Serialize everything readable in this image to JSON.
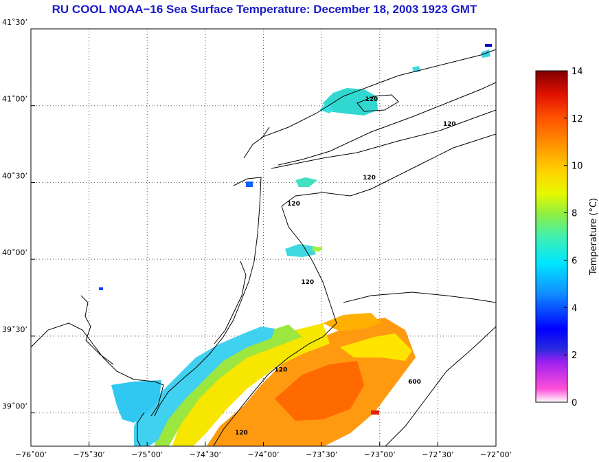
{
  "title": "RU COOL  NOAA−16  Sea Surface Temperature:  December 18, 2003 1923 GMT",
  "map": {
    "lon_range": [
      -76.0,
      -72.0
    ],
    "lat_range": [
      38.7833,
      41.5
    ],
    "grid": "dotted",
    "x_ticks": [
      {
        "lon": -76.0,
        "label": "−76˚00’"
      },
      {
        "lon": -75.5,
        "label": "−75˚30’"
      },
      {
        "lon": -75.0,
        "label": "−75˚00’"
      },
      {
        "lon": -74.5,
        "label": "−74˚30’"
      },
      {
        "lon": -74.0,
        "label": "−74˚00’"
      },
      {
        "lon": -73.5,
        "label": "−73˚30’"
      },
      {
        "lon": -73.0,
        "label": "−73˚00’"
      },
      {
        "lon": -72.5,
        "label": "−72˚30’"
      },
      {
        "lon": -72.0,
        "label": "−72˚00’"
      }
    ],
    "y_ticks": [
      {
        "lat": 41.5,
        "label": "41˚30’"
      },
      {
        "lat": 41.0,
        "label": "41˚00’"
      },
      {
        "lat": 40.5,
        "label": "40˚30’"
      },
      {
        "lat": 40.0,
        "label": "40˚00’"
      },
      {
        "lat": 39.5,
        "label": "39˚30’"
      },
      {
        "lat": 39.0,
        "label": "39˚00’"
      }
    ],
    "contour_labels": [
      {
        "text": "120",
        "lon": -73.07,
        "lat": 41.03
      },
      {
        "text": "120",
        "lon": -72.4,
        "lat": 40.87
      },
      {
        "text": "120",
        "lon": -73.09,
        "lat": 40.52
      },
      {
        "text": "120",
        "lon": -73.74,
        "lat": 40.35
      },
      {
        "text": "120",
        "lon": -73.62,
        "lat": 39.84
      },
      {
        "text": "120",
        "lon": -73.85,
        "lat": 39.27
      },
      {
        "text": "120",
        "lon": -74.19,
        "lat": 38.86
      },
      {
        "text": "600",
        "lon": -72.7,
        "lat": 39.19
      }
    ]
  },
  "colorbar": {
    "label": "Temperature (°C)",
    "min": 0,
    "max": 14,
    "ticks": [
      "0",
      "2",
      "4",
      "6",
      "8",
      "10",
      "12",
      "14"
    ],
    "colors": [
      "#ffffff",
      "#ff00ff",
      "#7f00ff",
      "#0000ff",
      "#007fff",
      "#00ffff",
      "#00ff7f",
      "#7fff00",
      "#ffff00",
      "#ffbf00",
      "#ff7f00",
      "#ff3f00",
      "#d40000",
      "#7f0000"
    ]
  }
}
